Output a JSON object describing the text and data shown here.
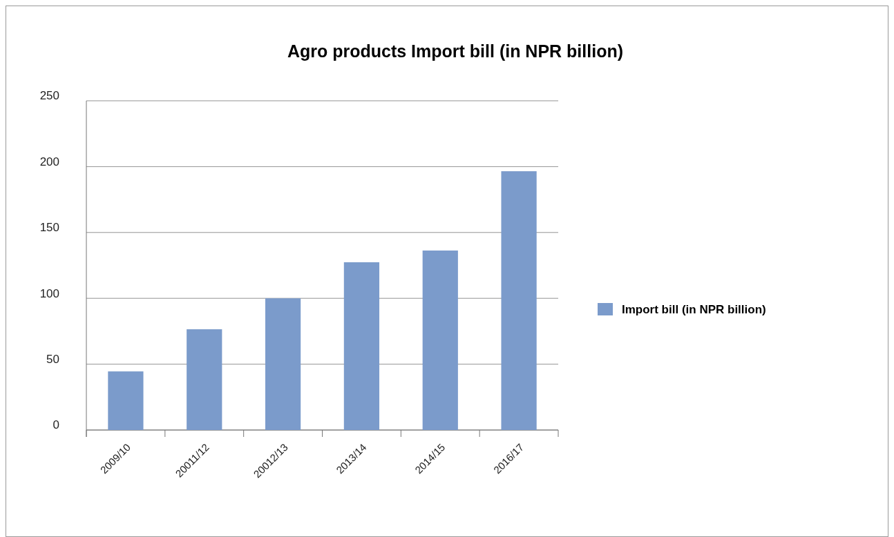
{
  "chart_data": {
    "type": "bar",
    "title": "Agro products Import bill (in NPR billion)",
    "categories": [
      "2009/10",
      "20011/12",
      "20012/13",
      "2013/14",
      "2014/15",
      "2016/17"
    ],
    "series": [
      {
        "name": "Import bill (in NPR billion)",
        "color": "#7b9bcb",
        "values": [
          44.5,
          76.5,
          100,
          127.4,
          136.3,
          196.5
        ]
      }
    ],
    "ylim": [
      0,
      250
    ],
    "yticks": [
      0,
      50,
      100,
      150,
      200,
      250
    ],
    "grid": "y",
    "legend": "right"
  }
}
